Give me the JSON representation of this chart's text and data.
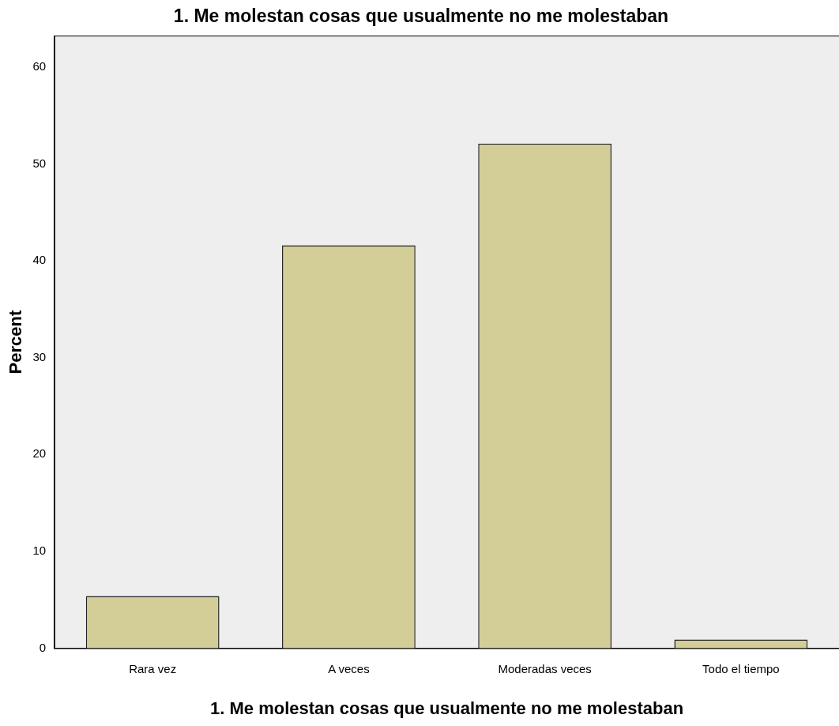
{
  "chart_data": {
    "type": "bar",
    "title": "1. Me molestan cosas que usualmente no me molestaban",
    "xlabel": "1. Me molestan cosas que usualmente no me molestaban",
    "ylabel": "Percent",
    "categories": [
      "Rara vez",
      "A veces",
      "Moderadas veces",
      "Todo el tiempo"
    ],
    "values": [
      5.4,
      41.6,
      52.1,
      0.9
    ],
    "color": "#d3ce97",
    "ylim": [
      0,
      63.2
    ],
    "yticks": [
      0,
      10,
      20,
      30,
      40,
      50,
      60
    ],
    "grid": false,
    "legend": false
  }
}
